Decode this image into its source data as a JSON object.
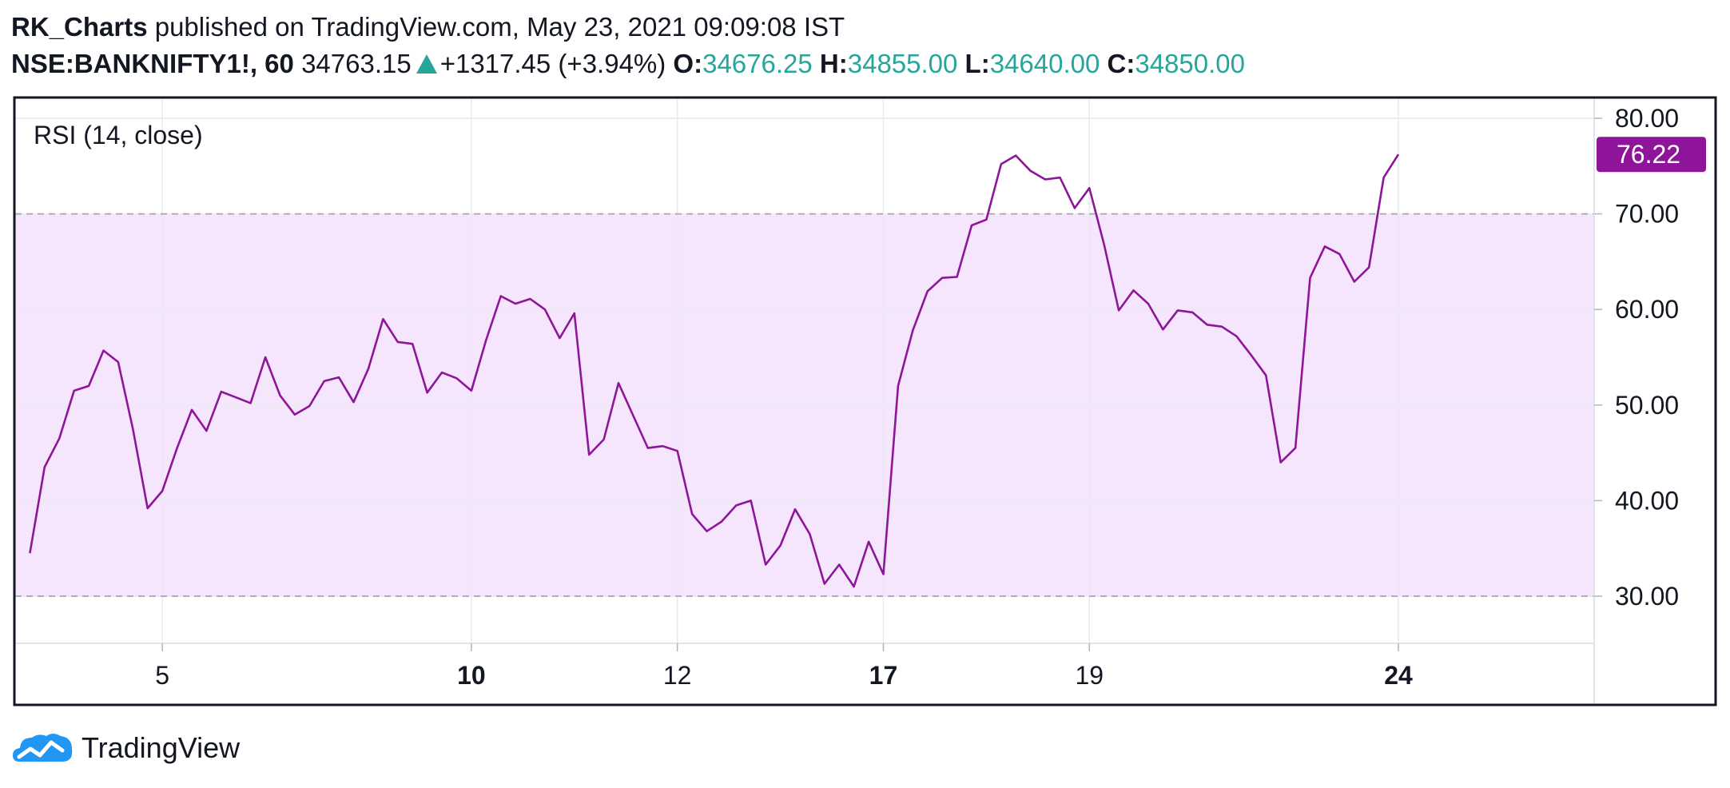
{
  "header": {
    "author": "RK_Charts",
    "published_text": "published on TradingView.com, May 23, 2021 09:09:08 IST",
    "symbol": "NSE:BANKNIFTY1!, 60",
    "last_price": "34763.15",
    "change": "+1317.45 (+3.94%)",
    "open_label": "O:",
    "open": "34676.25",
    "high_label": "H:",
    "high": "34855.00",
    "low_label": "L:",
    "low": "34640.00",
    "close_label": "C:",
    "close": "34850.00"
  },
  "footer": {
    "brand": "TradingView",
    "logo_icon": "tradingview-cloud-icon"
  },
  "colors": {
    "rsi_line": "#8e1599",
    "band_fill": "#f5e6fd",
    "up": "#26a69a",
    "last_value_badge": "#8e1599"
  },
  "chart_data": {
    "type": "line",
    "indicator_label": "RSI (14, close)",
    "last_value_label": "76.22",
    "ylim": [
      25,
      82
    ],
    "y_ticks": [
      "80.00",
      "70.00",
      "60.00",
      "50.00",
      "40.00",
      "30.00"
    ],
    "y_tick_values": [
      80,
      70,
      60,
      50,
      40,
      30
    ],
    "bands": {
      "upper": 70,
      "lower": 30
    },
    "grid": true,
    "x_ticks": [
      {
        "label": "5",
        "index": 9,
        "bold": false
      },
      {
        "label": "10",
        "index": 30,
        "bold": true
      },
      {
        "label": "12",
        "index": 44,
        "bold": false
      },
      {
        "label": "17",
        "index": 58,
        "bold": true
      },
      {
        "label": "19",
        "index": 72,
        "bold": false
      },
      {
        "label": "24",
        "index": 93,
        "bold": true
      }
    ],
    "x_index_range": [
      -1,
      106
    ],
    "series": [
      {
        "values": [
          34.5,
          43.5,
          46.5,
          51.5,
          52,
          55.7,
          54.5,
          47.5,
          39.2,
          41,
          45.5,
          49.5,
          47.3,
          51.4,
          50.8,
          50.2,
          55,
          51,
          49,
          49.9,
          52.5,
          52.9,
          50.3,
          53.8,
          59,
          56.6,
          56.4,
          51.3,
          53.4,
          52.8,
          51.5,
          56.8,
          61.4,
          60.6,
          61.1,
          60,
          57,
          59.6,
          44.8,
          46.4,
          52.3,
          48.9,
          45.5,
          45.7,
          45.2,
          38.6,
          36.8,
          37.8,
          39.5,
          40,
          33.3,
          35.3,
          39.1,
          36.5,
          31.3,
          33.3,
          31,
          35.7,
          32.3,
          52,
          57.8,
          61.9,
          63.3,
          63.4,
          68.8,
          69.4,
          75.2,
          76.1,
          74.5,
          73.6,
          73.8,
          70.6,
          72.7,
          66.8,
          59.9,
          62,
          60.6,
          57.9,
          59.9,
          59.7,
          58.4,
          58.2,
          57.2,
          55.2,
          53.1,
          44,
          45.5,
          63.3,
          66.6,
          65.8,
          62.9,
          64.4,
          73.8,
          76.22
        ]
      }
    ]
  }
}
